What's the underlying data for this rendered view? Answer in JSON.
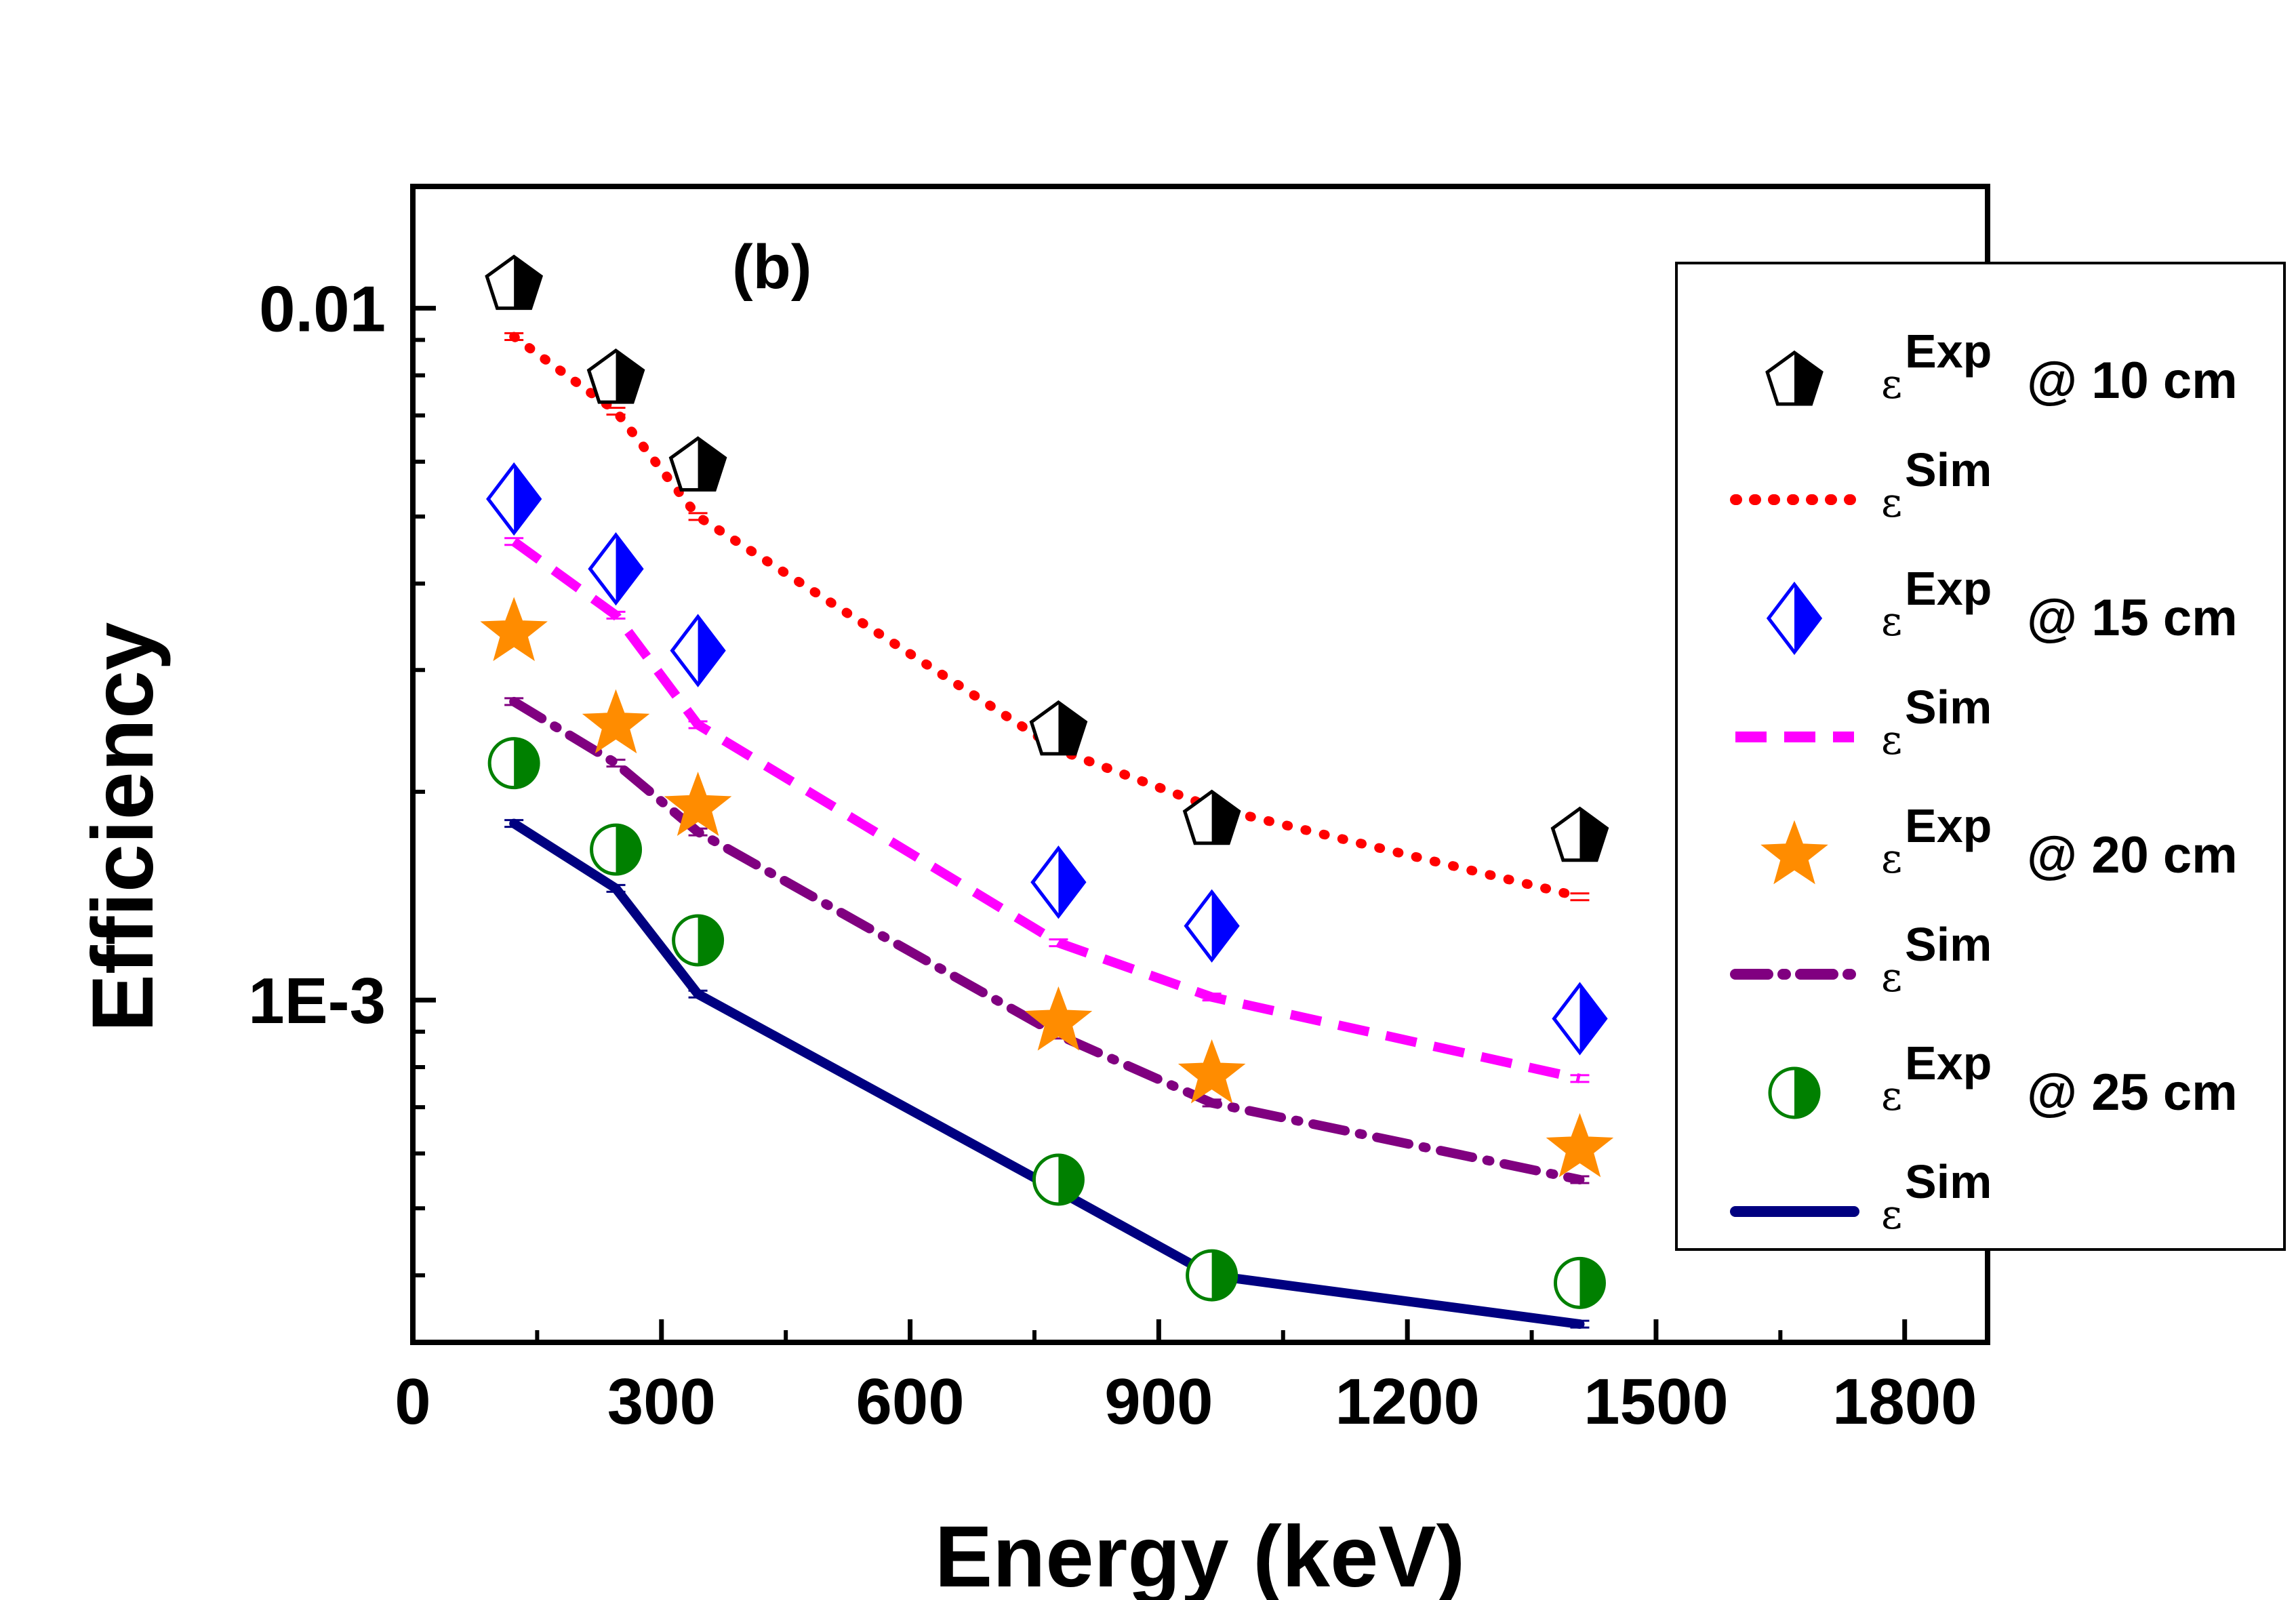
{
  "chart_data": {
    "type": "scatter",
    "panel_label": "(b)",
    "xlabel": "Energy (keV)",
    "ylabel": "Efficiency",
    "xlim": [
      0,
      1900
    ],
    "ylim": [
      0.00032,
      0.015
    ],
    "yscale": "log",
    "x_ticks": [
      0,
      300,
      600,
      900,
      1200,
      1500,
      1800
    ],
    "x_tick_labels": [
      "0",
      "300",
      "600",
      "900",
      "1200",
      "1500",
      "1800"
    ],
    "y_ticks": [
      0.001,
      0.01
    ],
    "y_tick_labels": [
      "1E-3",
      "0.01"
    ],
    "legend_position": "right",
    "legend_epsilon": "ε",
    "energies": [
      122,
      245,
      344,
      779,
      964,
      1408
    ],
    "series": [
      {
        "name": "ε^Exp @ 10 cm",
        "kind": "exp",
        "marker": "pentagon",
        "color": "#000000",
        "sup": "Exp",
        "suffix": "@ 10 cm",
        "values": [
          0.0108,
          0.0079,
          0.0059,
          0.00245,
          0.00182,
          0.00172
        ]
      },
      {
        "name": "ε^Sim 10 cm",
        "kind": "sim",
        "style": "dotted",
        "color": "#ff0000",
        "sup": "Sim",
        "values": [
          0.0091,
          0.0071,
          0.005,
          0.0023,
          0.0019,
          0.00141
        ]
      },
      {
        "name": "ε^Exp @ 15 cm",
        "kind": "exp",
        "marker": "diamond",
        "color": "#0000ff",
        "sup": "Exp",
        "suffix": "@ 15 cm",
        "values": [
          0.0053,
          0.0042,
          0.0032,
          0.00148,
          0.00128,
          0.00094
        ]
      },
      {
        "name": "ε^Sim 15 cm",
        "kind": "sim",
        "style": "dashed",
        "color": "#ff00ff",
        "sup": "Sim",
        "values": [
          0.0046,
          0.0036,
          0.0025,
          0.00121,
          0.00101,
          0.00077
        ]
      },
      {
        "name": "ε^Exp @ 20 cm",
        "kind": "exp",
        "marker": "star",
        "color": "#ff8c00",
        "sup": "Exp",
        "suffix": "@ 20 cm",
        "values": [
          0.0034,
          0.0025,
          0.0019,
          0.00093,
          0.00078,
          0.00061
        ]
      },
      {
        "name": "ε^Sim 20 cm",
        "kind": "sim",
        "style": "dashdot",
        "color": "#800080",
        "sup": "Sim",
        "values": [
          0.0027,
          0.0022,
          0.00175,
          0.00089,
          0.00071,
          0.00055
        ]
      },
      {
        "name": "ε^Exp @ 25 cm",
        "kind": "exp",
        "marker": "circle",
        "color": "#008000",
        "sup": "Exp",
        "suffix": "@ 25 cm",
        "values": [
          0.0022,
          0.00165,
          0.00122,
          0.00055,
          0.0004,
          0.00039
        ]
      },
      {
        "name": "ε^Sim 25 cm",
        "kind": "sim",
        "style": "solid",
        "color": "#000080",
        "sup": "Sim",
        "values": [
          0.0018,
          0.00145,
          0.00102,
          0.00053,
          0.0004,
          0.00034
        ]
      }
    ]
  }
}
